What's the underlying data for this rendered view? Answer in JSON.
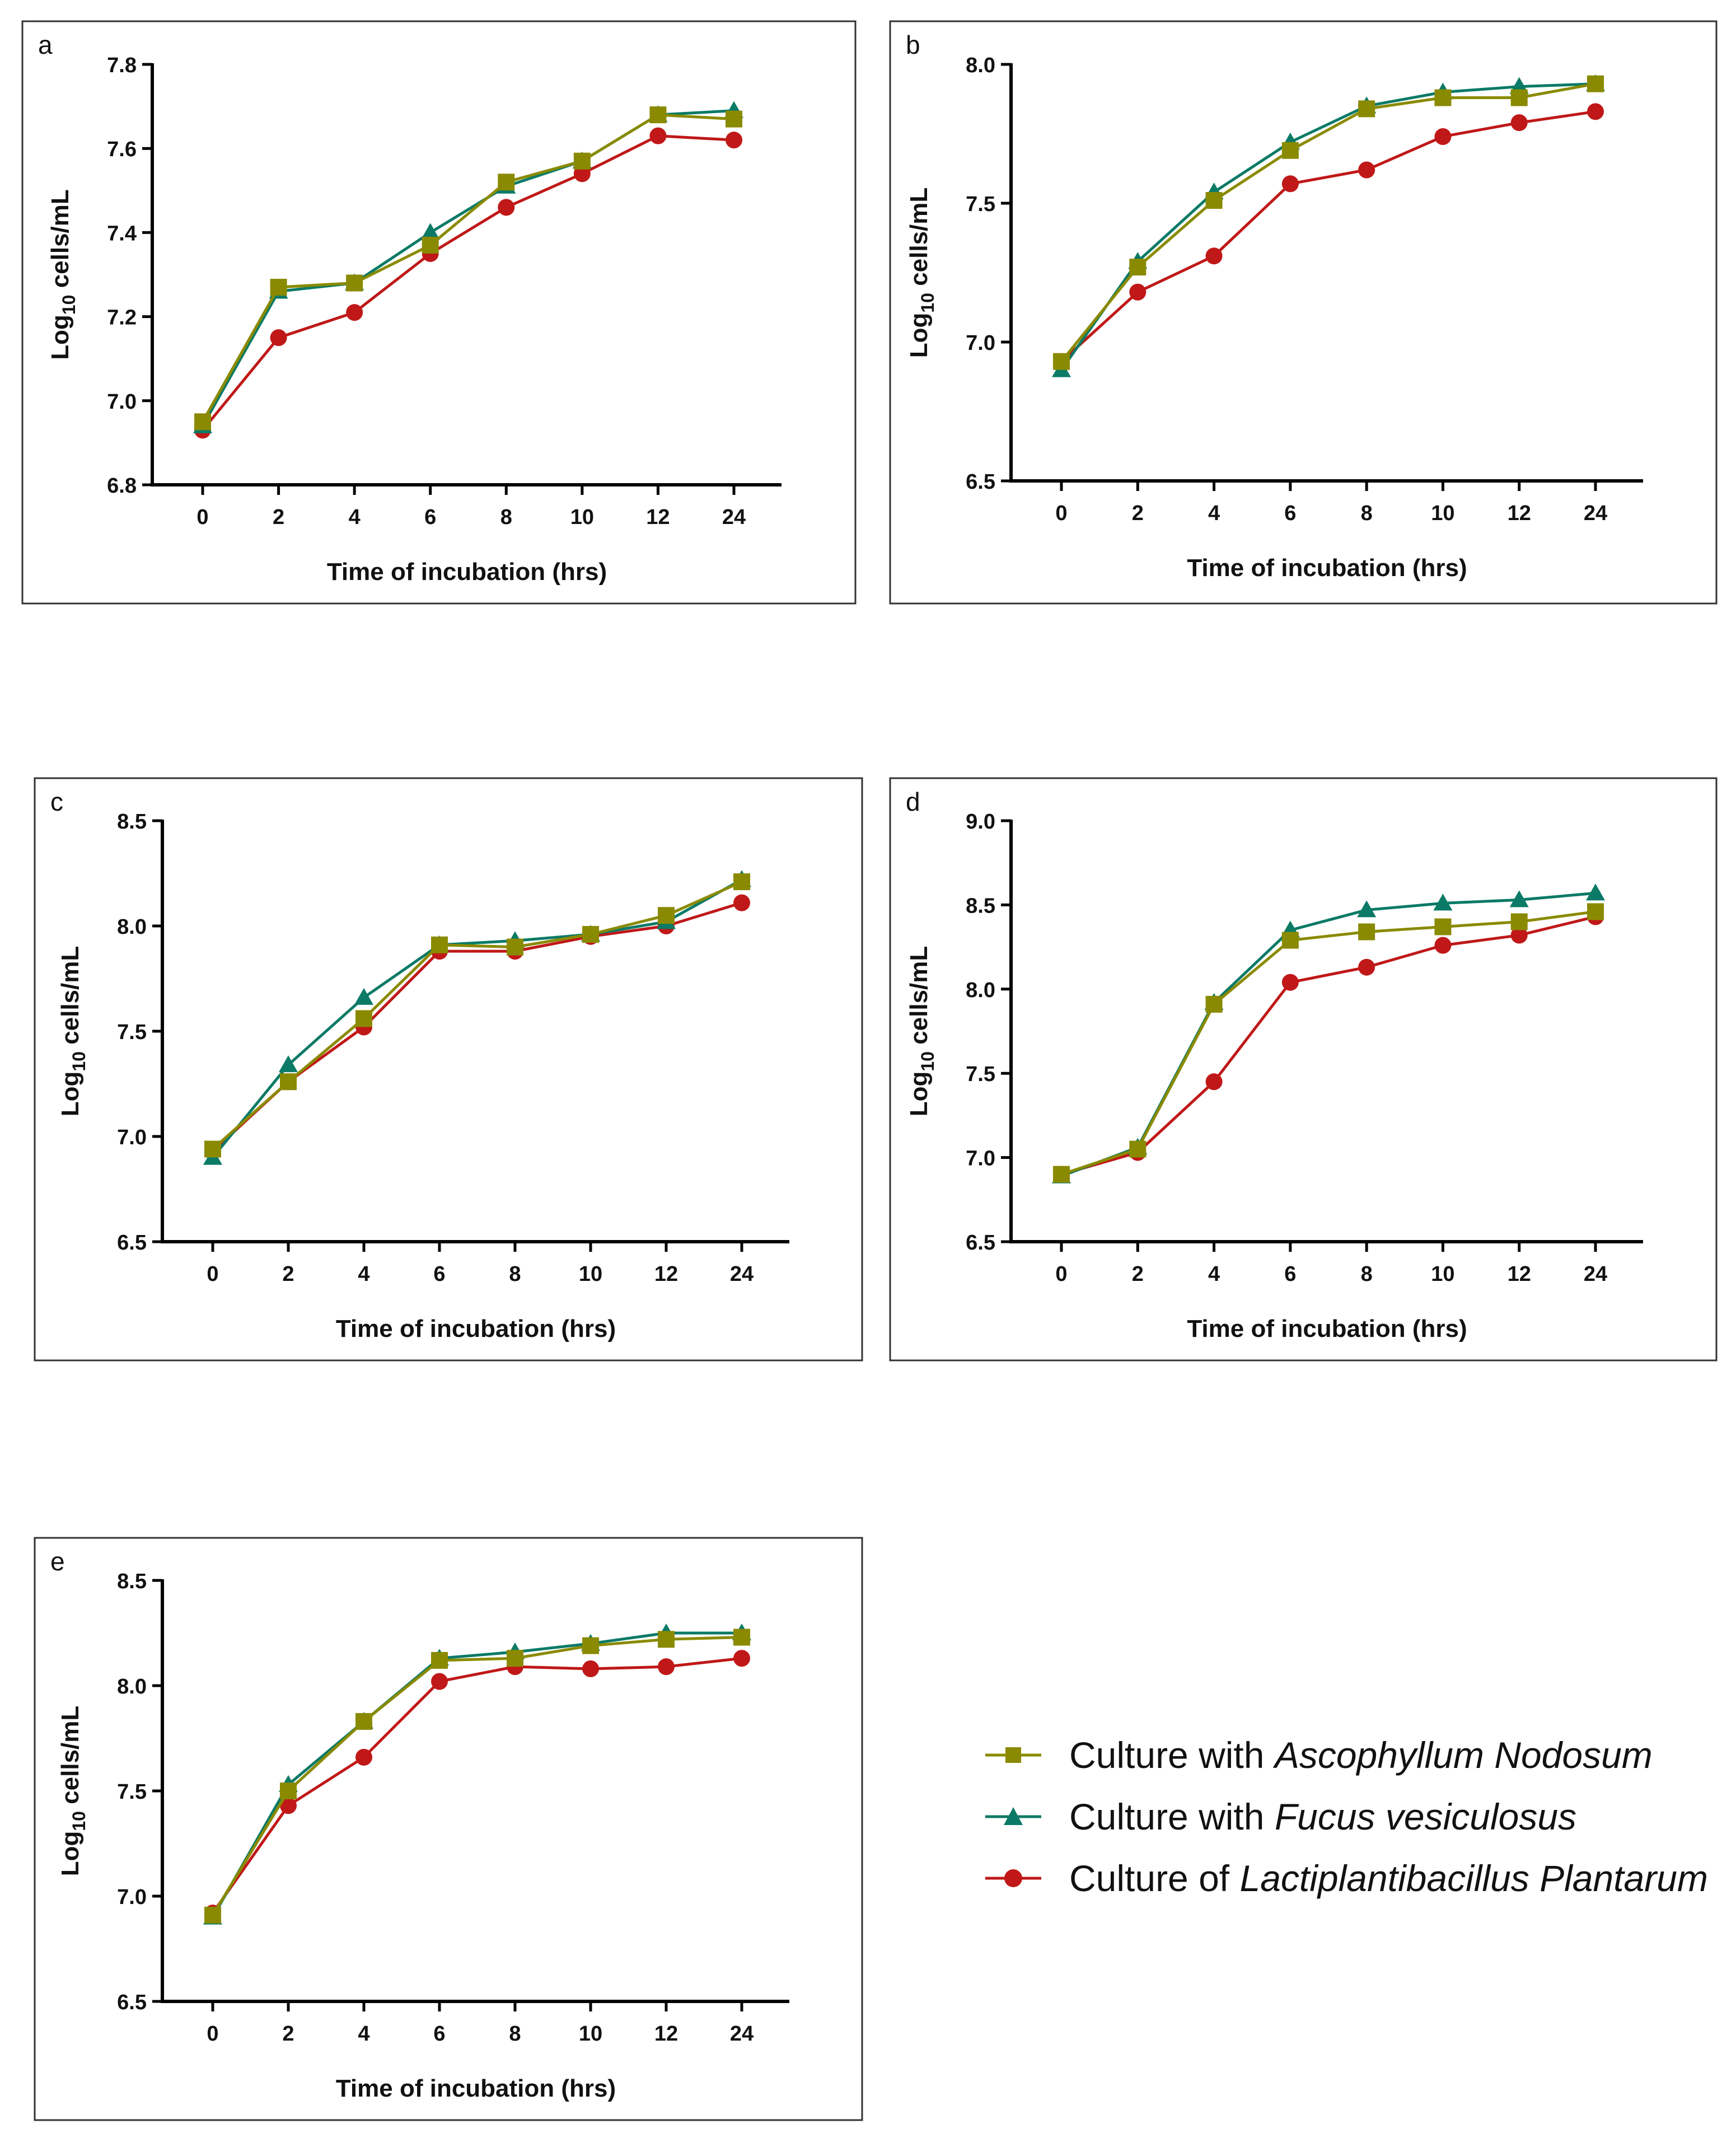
{
  "colors": {
    "ascophyllum": "#8a8a00",
    "fucus": "#0b7a66",
    "lactiplantibacillus": "#c01818",
    "frame": "#333333",
    "axis": "#000000"
  },
  "legend": {
    "items": [
      {
        "key": "ascophyllum",
        "marker": "square",
        "prefix": "Culture with ",
        "italic": "Ascophyllum Nodosum"
      },
      {
        "key": "fucus",
        "marker": "triangle",
        "prefix": "Culture with ",
        "italic": "Fucus vesiculosus"
      },
      {
        "key": "lactiplantibacillus",
        "marker": "circle",
        "prefix": "Culture of ",
        "italic": "Lactiplantibacillus Plantarum"
      }
    ]
  },
  "chart_data": [
    {
      "panel": "a",
      "type": "line",
      "xlabel": "Time of incubation (hrs)",
      "ylabel_main": "Log",
      "ylabel_sub": "10",
      "ylabel_rest": " cells/mL",
      "categories": [
        "0",
        "2",
        "4",
        "6",
        "8",
        "10",
        "12",
        "24"
      ],
      "ylim": [
        6.8,
        7.8
      ],
      "yticks": [
        "6.8",
        "7.0",
        "7.2",
        "7.4",
        "7.6",
        "7.8"
      ],
      "series": [
        {
          "key": "ascophyllum",
          "name": "Culture with Ascophyllum Nodosum",
          "values": [
            6.95,
            7.27,
            7.28,
            7.37,
            7.52,
            7.57,
            7.68,
            7.67
          ]
        },
        {
          "key": "fucus",
          "name": "Culture with Fucus vesiculosus",
          "values": [
            6.94,
            7.26,
            7.28,
            7.4,
            7.51,
            7.57,
            7.68,
            7.69
          ]
        },
        {
          "key": "lactiplantibacillus",
          "name": "Culture of Lactiplantibacillus Plantarum",
          "values": [
            6.93,
            7.15,
            7.21,
            7.35,
            7.46,
            7.54,
            7.63,
            7.62
          ]
        }
      ]
    },
    {
      "panel": "b",
      "type": "line",
      "xlabel": "Time of incubation (hrs)",
      "ylabel_main": "Log",
      "ylabel_sub": "10",
      "ylabel_rest": " cells/mL",
      "categories": [
        "0",
        "2",
        "4",
        "6",
        "8",
        "10",
        "12",
        "24"
      ],
      "ylim": [
        6.5,
        8.0
      ],
      "yticks": [
        "6.5",
        "7.0",
        "7.5",
        "8.0"
      ],
      "series": [
        {
          "key": "ascophyllum",
          "name": "Culture with Ascophyllum Nodosum",
          "values": [
            6.93,
            7.27,
            7.51,
            7.69,
            7.84,
            7.88,
            7.88,
            7.93
          ]
        },
        {
          "key": "fucus",
          "name": "Culture with Fucus vesiculosus",
          "values": [
            6.9,
            7.29,
            7.54,
            7.72,
            7.85,
            7.9,
            7.92,
            7.93
          ]
        },
        {
          "key": "lactiplantibacillus",
          "name": "Culture of Lactiplantibacillus Plantarum",
          "values": [
            6.93,
            7.18,
            7.31,
            7.57,
            7.62,
            7.74,
            7.79,
            7.83
          ]
        }
      ]
    },
    {
      "panel": "c",
      "type": "line",
      "xlabel": "Time of incubation (hrs)",
      "ylabel_main": "Log",
      "ylabel_sub": "10",
      "ylabel_rest": " cells/mL",
      "categories": [
        "0",
        "2",
        "4",
        "6",
        "8",
        "10",
        "12",
        "24"
      ],
      "ylim": [
        6.5,
        8.5
      ],
      "yticks": [
        "6.5",
        "7.0",
        "7.5",
        "8.0",
        "8.5"
      ],
      "series": [
        {
          "key": "ascophyllum",
          "name": "Culture with Ascophyllum Nodosum",
          "values": [
            6.94,
            7.26,
            7.56,
            7.91,
            7.9,
            7.96,
            8.05,
            8.21
          ]
        },
        {
          "key": "fucus",
          "name": "Culture with Fucus vesiculosus",
          "values": [
            6.9,
            7.34,
            7.66,
            7.91,
            7.93,
            7.96,
            8.02,
            8.22
          ]
        },
        {
          "key": "lactiplantibacillus",
          "name": "Culture of Lactiplantibacillus Plantarum",
          "values": [
            6.93,
            7.26,
            7.52,
            7.88,
            7.88,
            7.95,
            8.0,
            8.11
          ]
        }
      ]
    },
    {
      "panel": "d",
      "type": "line",
      "xlabel": "Time of incubation (hrs)",
      "ylabel_main": "Log",
      "ylabel_sub": "10",
      "ylabel_rest": " cells/mL",
      "categories": [
        "0",
        "2",
        "4",
        "6",
        "8",
        "10",
        "12",
        "24"
      ],
      "ylim": [
        6.5,
        9.0
      ],
      "yticks": [
        "6.5",
        "7.0",
        "7.5",
        "8.0",
        "8.5",
        "9.0"
      ],
      "series": [
        {
          "key": "ascophyllum",
          "name": "Culture with Ascophyllum Nodosum",
          "values": [
            6.9,
            7.05,
            7.91,
            8.29,
            8.34,
            8.37,
            8.4,
            8.46
          ]
        },
        {
          "key": "fucus",
          "name": "Culture with Fucus vesiculosus",
          "values": [
            6.89,
            7.06,
            7.92,
            8.35,
            8.47,
            8.51,
            8.53,
            8.57
          ]
        },
        {
          "key": "lactiplantibacillus",
          "name": "Culture of Lactiplantibacillus Plantarum",
          "values": [
            6.9,
            7.03,
            7.45,
            8.04,
            8.13,
            8.26,
            8.32,
            8.43
          ]
        }
      ]
    },
    {
      "panel": "e",
      "type": "line",
      "xlabel": "Time of incubation (hrs)",
      "ylabel_main": "Log",
      "ylabel_sub": "10",
      "ylabel_rest": " cells/mL",
      "categories": [
        "0",
        "2",
        "4",
        "6",
        "8",
        "10",
        "12",
        "24"
      ],
      "ylim": [
        6.5,
        8.5
      ],
      "yticks": [
        "6.5",
        "7.0",
        "7.5",
        "8.0",
        "8.5"
      ],
      "series": [
        {
          "key": "ascophyllum",
          "name": "Culture with Ascophyllum Nodosum",
          "values": [
            6.91,
            7.5,
            7.83,
            8.12,
            8.13,
            8.19,
            8.22,
            8.23
          ]
        },
        {
          "key": "fucus",
          "name": "Culture with Fucus vesiculosus",
          "values": [
            6.9,
            7.53,
            7.83,
            8.13,
            8.16,
            8.2,
            8.25,
            8.25
          ]
        },
        {
          "key": "lactiplantibacillus",
          "name": "Culture of Lactiplantibacillus Plantarum",
          "values": [
            6.92,
            7.43,
            7.66,
            8.02,
            8.09,
            8.08,
            8.09,
            8.13
          ]
        }
      ]
    }
  ]
}
